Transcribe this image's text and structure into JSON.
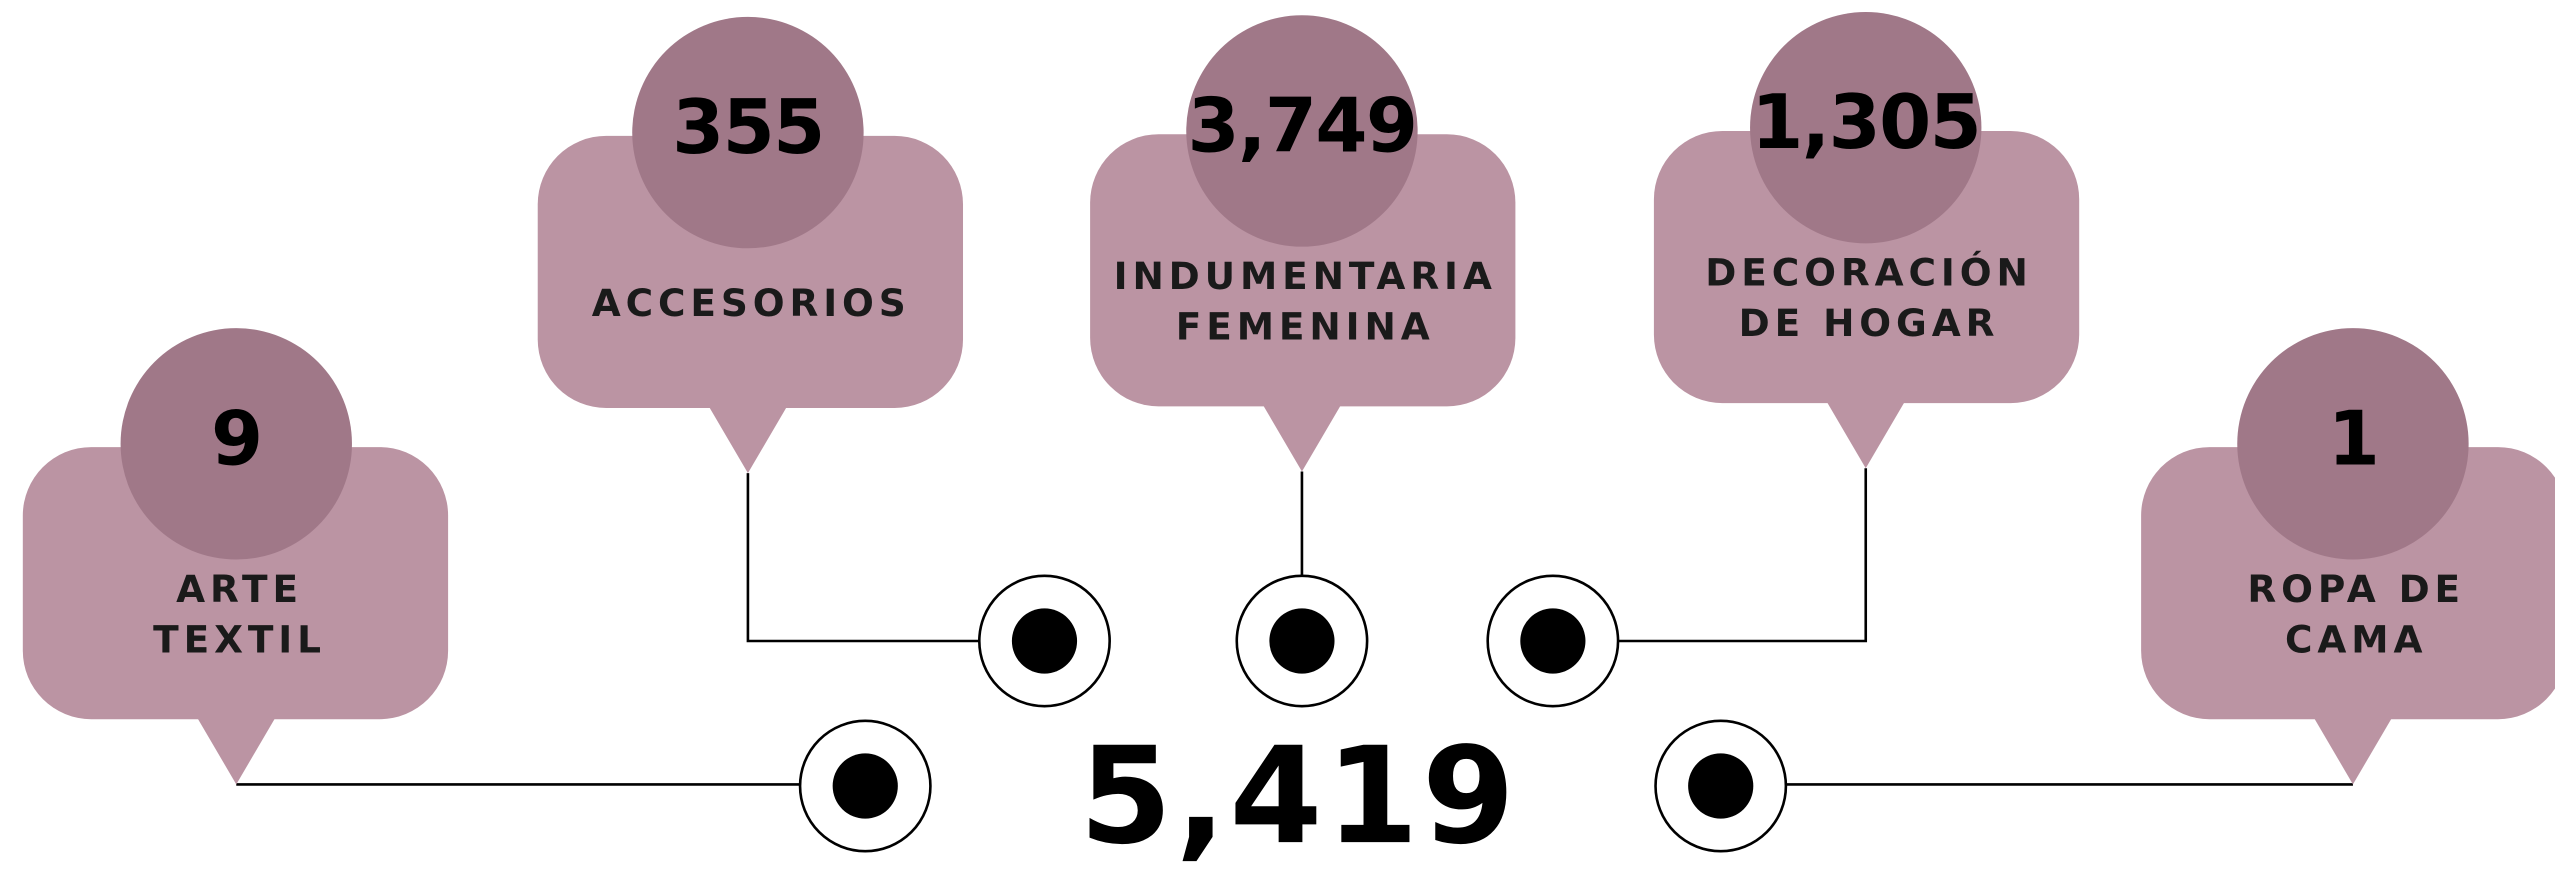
{
  "total": "5,419",
  "items": [
    {
      "value": "9",
      "label": [
        "ARTE",
        "TEXTIL"
      ]
    },
    {
      "value": "355",
      "label": [
        "ACCESORIOS"
      ]
    },
    {
      "value": "3,749",
      "label": [
        "INDUMENTARIA",
        "FEMENINA"
      ]
    },
    {
      "value": "1,305",
      "label": [
        "DECORACIÓN",
        "DE HOGAR"
      ]
    },
    {
      "value": "1",
      "label": [
        "ROPA DE",
        "CAMA"
      ]
    }
  ]
}
